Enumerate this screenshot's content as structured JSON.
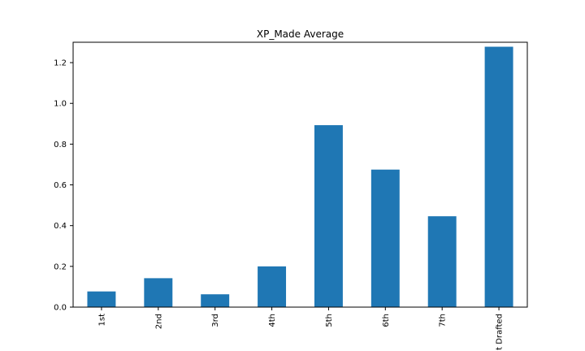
{
  "chart_data": {
    "type": "bar",
    "title": "XP_Made Average",
    "xlabel": "",
    "ylabel": "",
    "categories": [
      "1st",
      "2nd",
      "3rd",
      "4th",
      "5th",
      "6th",
      "7th",
      "t Drafted"
    ],
    "values": [
      0.077,
      0.142,
      0.063,
      0.2,
      0.893,
      0.675,
      0.446,
      1.278
    ],
    "ylim": [
      0,
      1.3
    ],
    "yticks": [
      0.0,
      0.2,
      0.4,
      0.6,
      0.8,
      1.0,
      1.2
    ],
    "ytick_labels": [
      "0.0",
      "0.2",
      "0.4",
      "0.6",
      "0.8",
      "1.0",
      "1.2"
    ],
    "grid": false,
    "bar_color": "#1f77b4"
  }
}
